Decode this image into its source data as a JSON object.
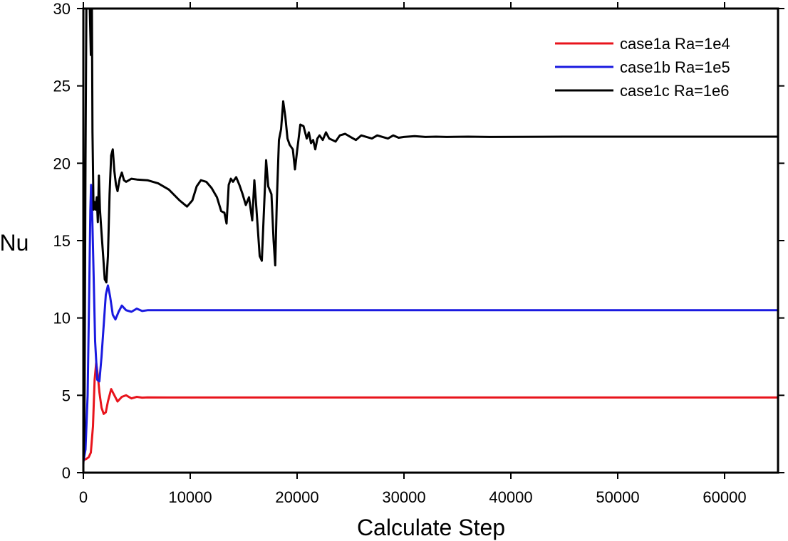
{
  "chart_data": {
    "type": "line",
    "title": "",
    "xlabel": "Calculate Step",
    "ylabel": "Nu",
    "xlim": [
      0,
      65000
    ],
    "ylim": [
      0,
      30
    ],
    "x_ticks": [
      0,
      10000,
      20000,
      30000,
      40000,
      50000,
      60000
    ],
    "y_ticks": [
      0,
      5,
      10,
      15,
      20,
      25,
      30
    ],
    "grid": false,
    "legend_position": "top-right",
    "series": [
      {
        "name": "case1a Ra=1e4",
        "color": "#e8141c",
        "points": [
          [
            0,
            0.8
          ],
          [
            300,
            0.9
          ],
          [
            500,
            1.0
          ],
          [
            700,
            1.3
          ],
          [
            900,
            3.0
          ],
          [
            1050,
            6.0
          ],
          [
            1200,
            7.1
          ],
          [
            1350,
            6.3
          ],
          [
            1500,
            5.2
          ],
          [
            1700,
            4.2
          ],
          [
            1900,
            3.8
          ],
          [
            2100,
            3.9
          ],
          [
            2300,
            4.6
          ],
          [
            2600,
            5.4
          ],
          [
            2900,
            5.0
          ],
          [
            3200,
            4.6
          ],
          [
            3600,
            4.9
          ],
          [
            4000,
            5.0
          ],
          [
            4500,
            4.8
          ],
          [
            5000,
            4.9
          ],
          [
            5500,
            4.85
          ],
          [
            6000,
            4.87
          ],
          [
            8000,
            4.86
          ],
          [
            20000,
            4.86
          ],
          [
            40000,
            4.86
          ],
          [
            65000,
            4.86
          ]
        ]
      },
      {
        "name": "case1b Ra=1e5",
        "color": "#1a1ae0",
        "points": [
          [
            0,
            0.7
          ],
          [
            200,
            1.5
          ],
          [
            400,
            5.0
          ],
          [
            550,
            12.0
          ],
          [
            650,
            17.0
          ],
          [
            720,
            18.6
          ],
          [
            800,
            17.5
          ],
          [
            950,
            13.0
          ],
          [
            1100,
            8.5
          ],
          [
            1300,
            6.0
          ],
          [
            1500,
            5.9
          ],
          [
            1700,
            7.5
          ],
          [
            1900,
            9.5
          ],
          [
            2100,
            11.5
          ],
          [
            2300,
            12.1
          ],
          [
            2500,
            11.4
          ],
          [
            2750,
            10.2
          ],
          [
            3000,
            9.9
          ],
          [
            3300,
            10.4
          ],
          [
            3600,
            10.8
          ],
          [
            4000,
            10.5
          ],
          [
            4500,
            10.4
          ],
          [
            5000,
            10.6
          ],
          [
            5500,
            10.45
          ],
          [
            6000,
            10.5
          ],
          [
            8000,
            10.5
          ],
          [
            20000,
            10.5
          ],
          [
            40000,
            10.5
          ],
          [
            65000,
            10.5
          ]
        ]
      },
      {
        "name": "case1c Ra=1e6",
        "color": "#000000",
        "points": [
          [
            0,
            0.5
          ],
          [
            100,
            3.0
          ],
          [
            200,
            20.0
          ],
          [
            280,
            30.0
          ],
          [
            600,
            30.0
          ],
          [
            700,
            27.0
          ],
          [
            800,
            30.0
          ],
          [
            850,
            22.0
          ],
          [
            950,
            17.0
          ],
          [
            1050,
            17.5
          ],
          [
            1150,
            17.0
          ],
          [
            1250,
            17.8
          ],
          [
            1350,
            16.2
          ],
          [
            1450,
            19.2
          ],
          [
            1550,
            17.0
          ],
          [
            1700,
            15.5
          ],
          [
            1850,
            14.0
          ],
          [
            2000,
            12.5
          ],
          [
            2150,
            12.3
          ],
          [
            2300,
            14.0
          ],
          [
            2450,
            18.0
          ],
          [
            2600,
            20.5
          ],
          [
            2750,
            20.9
          ],
          [
            2900,
            19.5
          ],
          [
            3050,
            18.6
          ],
          [
            3200,
            18.2
          ],
          [
            3400,
            19.0
          ],
          [
            3600,
            19.4
          ],
          [
            3800,
            18.9
          ],
          [
            4000,
            18.8
          ],
          [
            4500,
            19.0
          ],
          [
            5000,
            18.95
          ],
          [
            6000,
            18.9
          ],
          [
            7000,
            18.7
          ],
          [
            8000,
            18.3
          ],
          [
            9000,
            17.6
          ],
          [
            9700,
            17.2
          ],
          [
            10200,
            17.6
          ],
          [
            10600,
            18.5
          ],
          [
            11000,
            18.9
          ],
          [
            11500,
            18.8
          ],
          [
            12000,
            18.4
          ],
          [
            12500,
            17.8
          ],
          [
            12900,
            16.9
          ],
          [
            13200,
            16.8
          ],
          [
            13400,
            16.1
          ],
          [
            13600,
            18.6
          ],
          [
            13800,
            19.0
          ],
          [
            14000,
            18.8
          ],
          [
            14300,
            19.1
          ],
          [
            14600,
            18.6
          ],
          [
            14900,
            18.0
          ],
          [
            15200,
            17.3
          ],
          [
            15500,
            17.8
          ],
          [
            15800,
            16.3
          ],
          [
            16000,
            18.9
          ],
          [
            16200,
            17.0
          ],
          [
            16500,
            14.0
          ],
          [
            16700,
            13.7
          ],
          [
            16900,
            17.0
          ],
          [
            17100,
            20.2
          ],
          [
            17300,
            18.5
          ],
          [
            17600,
            18.0
          ],
          [
            17800,
            15.0
          ],
          [
            17950,
            13.4
          ],
          [
            18100,
            17.5
          ],
          [
            18300,
            21.5
          ],
          [
            18500,
            22.2
          ],
          [
            18700,
            24.0
          ],
          [
            18900,
            23.0
          ],
          [
            19100,
            21.6
          ],
          [
            19300,
            21.2
          ],
          [
            19600,
            20.9
          ],
          [
            19800,
            19.6
          ],
          [
            20000,
            20.8
          ],
          [
            20300,
            22.5
          ],
          [
            20600,
            22.4
          ],
          [
            20900,
            21.6
          ],
          [
            21100,
            22.0
          ],
          [
            21300,
            21.3
          ],
          [
            21500,
            21.5
          ],
          [
            21700,
            20.9
          ],
          [
            21900,
            21.6
          ],
          [
            22100,
            21.8
          ],
          [
            22400,
            21.5
          ],
          [
            22700,
            22.0
          ],
          [
            23000,
            21.6
          ],
          [
            23300,
            21.5
          ],
          [
            23600,
            21.4
          ],
          [
            24000,
            21.8
          ],
          [
            24500,
            21.9
          ],
          [
            25000,
            21.7
          ],
          [
            25500,
            21.5
          ],
          [
            26000,
            21.8
          ],
          [
            26500,
            21.7
          ],
          [
            27000,
            21.6
          ],
          [
            27500,
            21.8
          ],
          [
            28000,
            21.7
          ],
          [
            28500,
            21.6
          ],
          [
            29000,
            21.8
          ],
          [
            29500,
            21.65
          ],
          [
            30000,
            21.7
          ],
          [
            31000,
            21.75
          ],
          [
            32000,
            21.7
          ],
          [
            33000,
            21.72
          ],
          [
            34000,
            21.7
          ],
          [
            36000,
            21.72
          ],
          [
            38000,
            21.7
          ],
          [
            45000,
            21.72
          ],
          [
            65000,
            21.72
          ]
        ]
      }
    ]
  }
}
